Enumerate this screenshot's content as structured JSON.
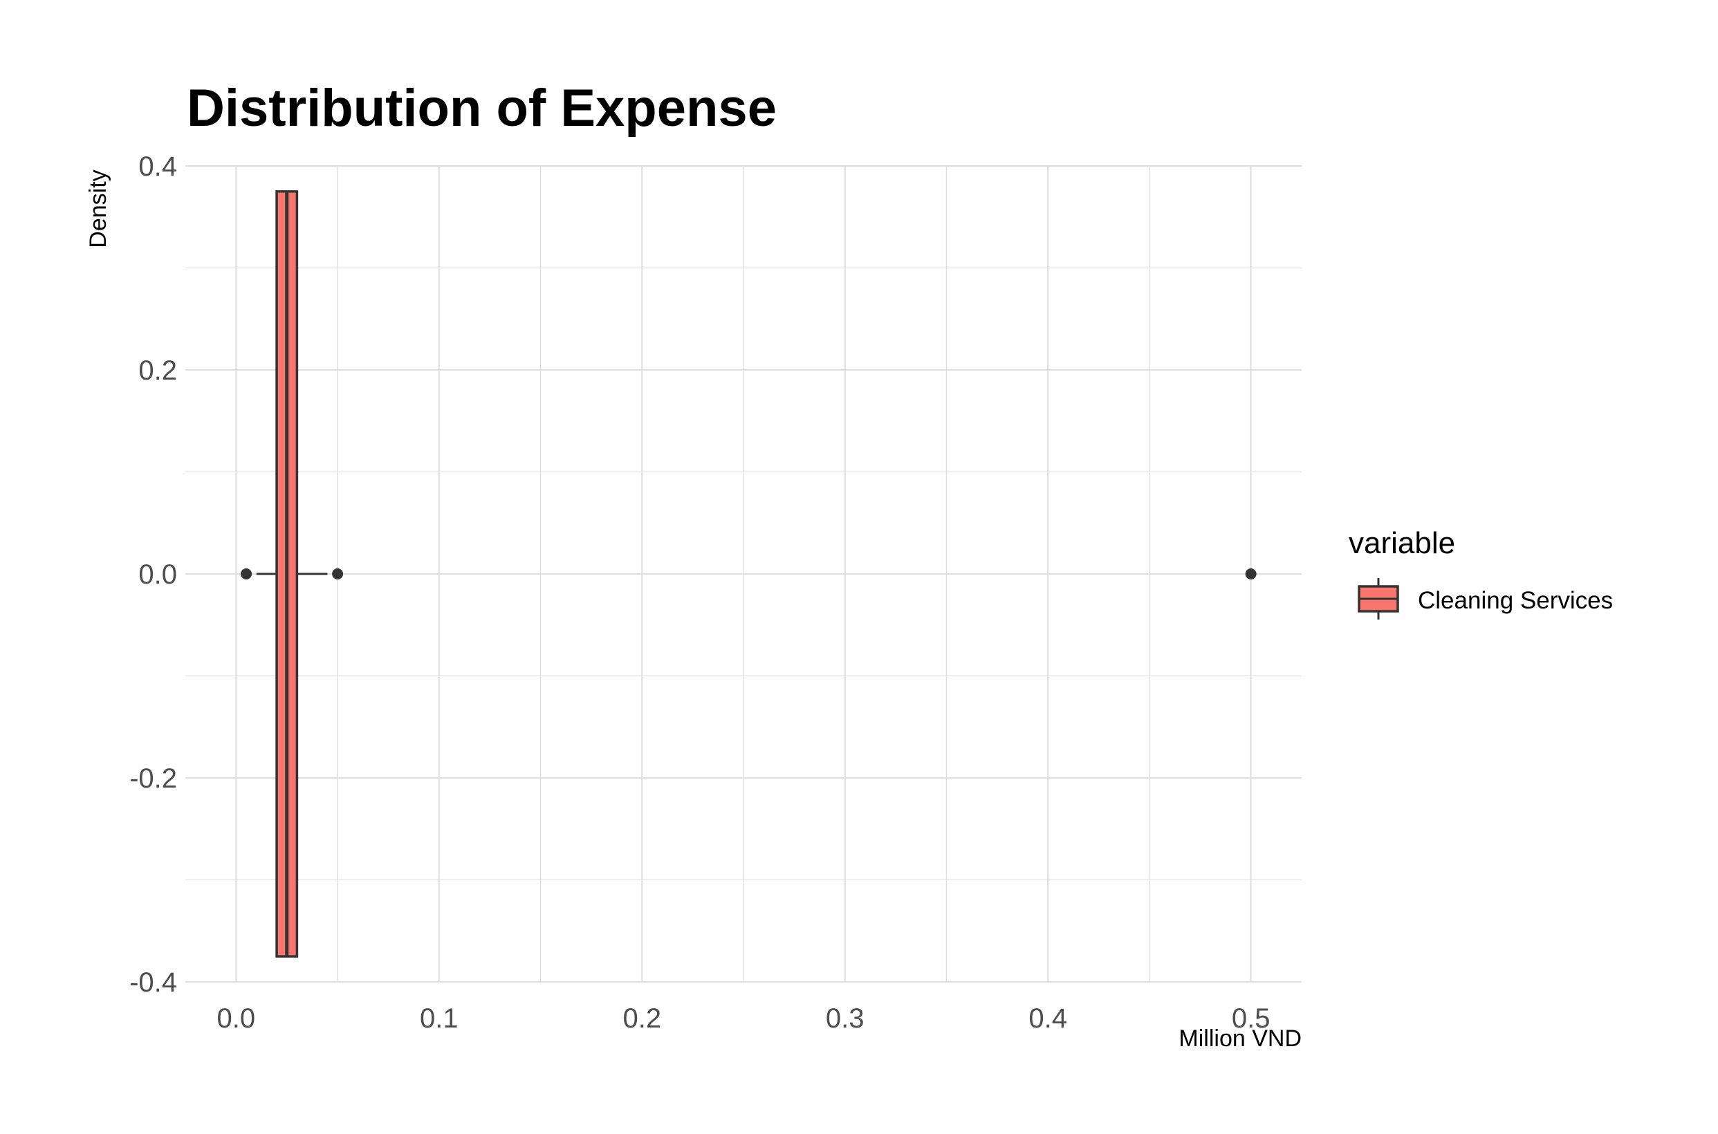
{
  "chart_data": {
    "type": "boxplot",
    "title": "Distribution of Expense",
    "xlabel": "Million VND",
    "ylabel": "Density",
    "xlim": [
      -0.025,
      0.525
    ],
    "ylim": [
      -0.4,
      0.4
    ],
    "x_ticks": [
      0.0,
      0.1,
      0.2,
      0.3,
      0.4,
      0.5
    ],
    "x_tick_labels": [
      "0.0",
      "0.1",
      "0.2",
      "0.3",
      "0.4",
      "0.5"
    ],
    "y_ticks": [
      -0.4,
      -0.2,
      0.0,
      0.2,
      0.4
    ],
    "y_tick_labels": [
      "-0.4",
      "-0.2",
      "0.0",
      "0.2",
      "0.4"
    ],
    "grid": true,
    "legend": {
      "title": "variable",
      "position": "right",
      "entries": [
        "Cleaning Services"
      ]
    },
    "series": [
      {
        "name": "Cleaning Services",
        "color": "#F8766D",
        "box": {
          "q1": 0.02,
          "median": 0.025,
          "q3": 0.03,
          "whisker_low": 0.01,
          "whisker_high": 0.045,
          "y_low": -0.375,
          "y_high": 0.375
        },
        "outliers": [
          0.005,
          0.05,
          0.5
        ]
      }
    ]
  }
}
